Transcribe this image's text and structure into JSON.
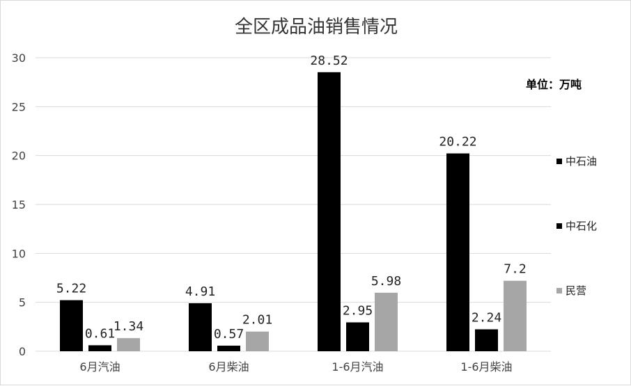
{
  "chart_data": {
    "type": "bar",
    "title": "全区成品油销售情况",
    "unit_label": "单位：万吨",
    "categories": [
      "6月汽油",
      "6月柴油",
      "1-6月汽油",
      "1-6月柴油"
    ],
    "series": [
      {
        "name": "中石油",
        "values": [
          5.22,
          4.91,
          28.52,
          20.22
        ],
        "labels": [
          "5.22",
          "4.91",
          "28.52",
          "20.22"
        ],
        "color": "#000000"
      },
      {
        "name": "中石化",
        "values": [
          0.61,
          0.57,
          2.95,
          2.24
        ],
        "labels": [
          "0.61",
          "0.57",
          "2.95",
          "2.24"
        ],
        "color": "#000000"
      },
      {
        "name": "民营",
        "values": [
          1.34,
          2.01,
          5.98,
          7.2
        ],
        "labels": [
          "1.34",
          "2.01",
          "5.98",
          "7.2"
        ],
        "color": "#a6a6a6"
      }
    ],
    "yticks": [
      "0",
      "5",
      "10",
      "15",
      "20",
      "25",
      "30"
    ],
    "ylim": [
      0,
      30
    ],
    "grid": true,
    "legend_position": "right"
  }
}
